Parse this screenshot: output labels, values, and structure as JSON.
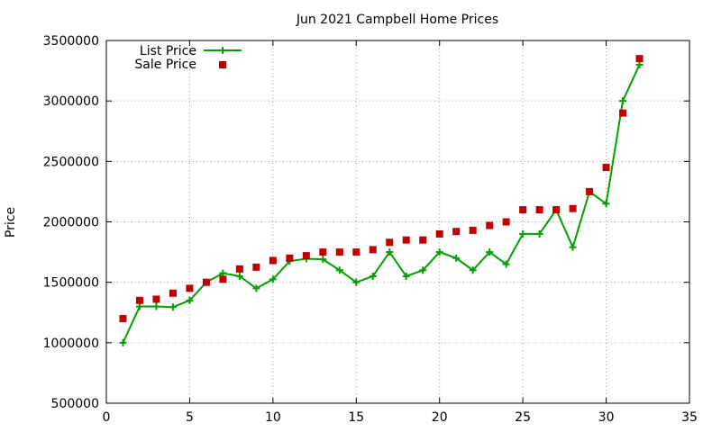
{
  "chart_data": {
    "type": "line",
    "title": "Jun 2021 Campbell Home Prices",
    "xlabel": "",
    "ylabel": "Price",
    "xlim": [
      0,
      35
    ],
    "ylim": [
      500000,
      3500000
    ],
    "xticks": [
      0,
      5,
      10,
      15,
      20,
      25,
      30,
      35
    ],
    "yticks": [
      500000,
      1000000,
      1500000,
      2000000,
      2500000,
      3000000,
      3500000
    ],
    "grid": true,
    "legend_position": "top-left",
    "series": [
      {
        "name": "List Price",
        "style": "line+plus",
        "color": "#00a000",
        "x": [
          1,
          2,
          3,
          4,
          5,
          6,
          7,
          8,
          9,
          10,
          11,
          12,
          13,
          14,
          15,
          16,
          17,
          18,
          19,
          20,
          21,
          22,
          23,
          24,
          25,
          26,
          27,
          28,
          29,
          30,
          31,
          32
        ],
        "values": [
          1000000,
          1300000,
          1300000,
          1295000,
          1350000,
          1500000,
          1575000,
          1550000,
          1450000,
          1525000,
          1675000,
          1695000,
          1690000,
          1600000,
          1500000,
          1550000,
          1750000,
          1550000,
          1600000,
          1750000,
          1700000,
          1600000,
          1750000,
          1650000,
          1900000,
          1900000,
          2100000,
          1790000,
          2250000,
          2150000,
          3000000,
          3300000
        ]
      },
      {
        "name": "Sale Price",
        "style": "square",
        "color": "#c00000",
        "x": [
          1,
          2,
          3,
          4,
          5,
          6,
          7,
          8,
          9,
          10,
          11,
          12,
          13,
          14,
          15,
          16,
          17,
          18,
          19,
          20,
          21,
          22,
          23,
          24,
          25,
          26,
          27,
          28,
          29,
          30,
          31,
          32
        ],
        "values": [
          1200000,
          1350000,
          1360000,
          1410000,
          1450000,
          1500000,
          1525000,
          1610000,
          1625000,
          1680000,
          1700000,
          1720000,
          1750000,
          1750000,
          1750000,
          1770000,
          1830000,
          1850000,
          1850000,
          1900000,
          1920000,
          1930000,
          1970000,
          2000000,
          2100000,
          2100000,
          2100000,
          2110000,
          2250000,
          2450000,
          2900000,
          3350000
        ]
      }
    ]
  }
}
